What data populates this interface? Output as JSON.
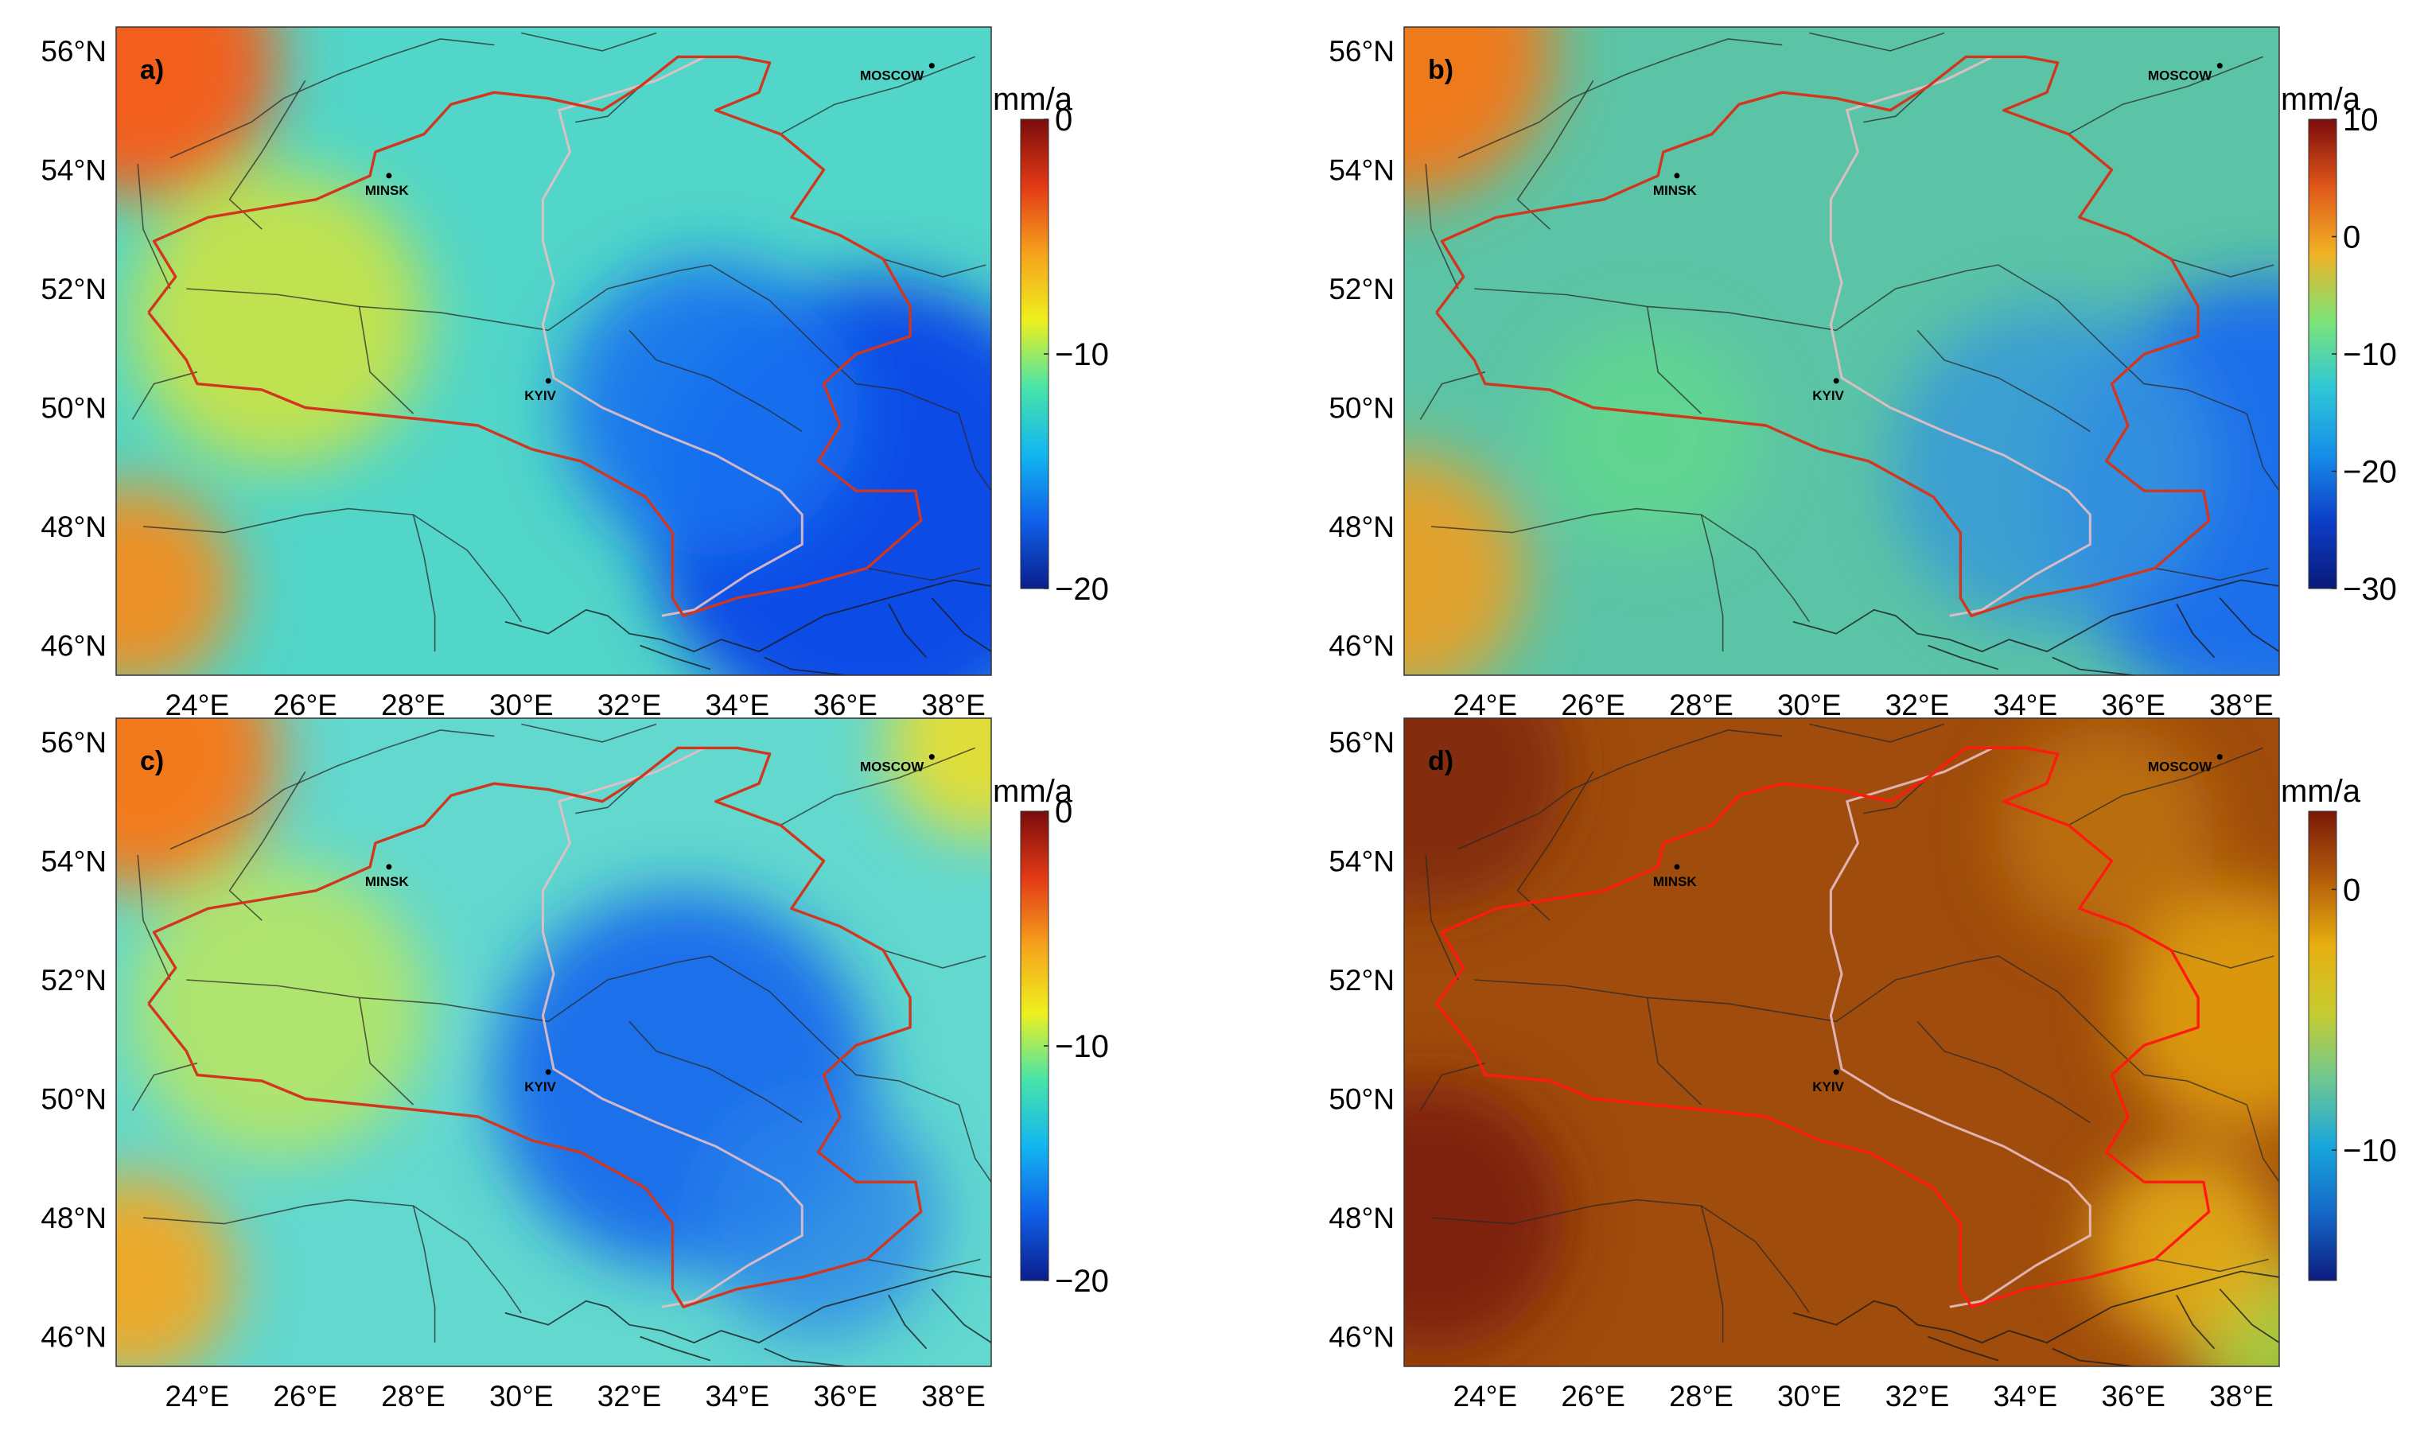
{
  "figure": {
    "panels": [
      {
        "id": "a",
        "label": "a)",
        "colorbar": {
          "unit": "mm/a",
          "ticks": [
            "0",
            "−10",
            "−20"
          ],
          "colors": [
            "#7a0c0c",
            "#e23a16",
            "#f5a21c",
            "#eef01e",
            "#49e4a8",
            "#12b6f0",
            "#1060e8",
            "#0a1e8c"
          ]
        },
        "field": {
          "base": "#52d6c9",
          "blobs": [
            {
              "lon": 36.5,
              "lat": 48.3,
              "r": 8.5,
              "color": "#0f4ce6",
              "o": 1
            },
            {
              "lon": 33.5,
              "lat": 50.0,
              "r": 5.5,
              "color": "#1a72ee",
              "o": 0.9
            },
            {
              "lon": 23.0,
              "lat": 55.8,
              "r": 5.0,
              "color": "#f25f1c",
              "o": 1
            },
            {
              "lon": 22.8,
              "lat": 47.0,
              "r": 3.8,
              "color": "#f28c1e",
              "o": 0.95
            },
            {
              "lon": 25.5,
              "lat": 51.5,
              "r": 5.5,
              "color": "#e6e629",
              "o": 0.75
            }
          ]
        }
      },
      {
        "id": "b",
        "label": "b)",
        "colorbar": {
          "unit": "mm/a",
          "ticks": [
            "10",
            "0",
            "−10",
            "−20",
            "−30"
          ],
          "colors": [
            "#7a0c0c",
            "#e0561a",
            "#f0b224",
            "#7ee478",
            "#2fc8d6",
            "#168ee8",
            "#0c3ec8",
            "#0a1a78"
          ]
        },
        "field": {
          "base": "#5cc4a6",
          "blobs": [
            {
              "lon": 38.5,
              "lat": 48.5,
              "r": 8.0,
              "color": "#1e6eea",
              "o": 1
            },
            {
              "lon": 34.5,
              "lat": 49.0,
              "r": 6.0,
              "color": "#3596dc",
              "o": 0.8
            },
            {
              "lon": 22.5,
              "lat": 56.0,
              "r": 5.5,
              "color": "#ee7a1e",
              "o": 1
            },
            {
              "lon": 22.5,
              "lat": 47.2,
              "r": 4.5,
              "color": "#e8a028",
              "o": 0.95
            },
            {
              "lon": 27.0,
              "lat": 49.5,
              "r": 4.0,
              "color": "#62dd88",
              "o": 0.7
            }
          ]
        }
      },
      {
        "id": "c",
        "label": "c)",
        "colorbar": {
          "unit": "mm/a",
          "ticks": [
            "0",
            "−10",
            "−20"
          ],
          "colors": [
            "#7a0c0c",
            "#e23a16",
            "#f5a21c",
            "#eef01e",
            "#49e4a8",
            "#12b6f0",
            "#1060e8",
            "#0a1e8c"
          ]
        },
        "field": {
          "base": "#62d8cf",
          "blobs": [
            {
              "lon": 33.0,
              "lat": 50.3,
              "r": 7.0,
              "color": "#1c70ea",
              "o": 1
            },
            {
              "lon": 35.5,
              "lat": 48.0,
              "r": 4.5,
              "color": "#2a84ea",
              "o": 0.8
            },
            {
              "lon": 23.0,
              "lat": 55.8,
              "r": 5.0,
              "color": "#f27a1e",
              "o": 1
            },
            {
              "lon": 22.8,
              "lat": 47.0,
              "r": 3.8,
              "color": "#f2a822",
              "o": 0.95
            },
            {
              "lon": 38.5,
              "lat": 56.0,
              "r": 3.5,
              "color": "#eede2a",
              "o": 0.9
            },
            {
              "lon": 25.5,
              "lat": 51.5,
              "r": 5.5,
              "color": "#e2ec2e",
              "o": 0.6
            }
          ]
        }
      },
      {
        "id": "d",
        "label": "d)",
        "colorbar": {
          "unit": "mm/a",
          "ticks": [
            "0",
            "−10"
          ],
          "colors": [
            "#7a1808",
            "#b45c0a",
            "#e7ae10",
            "#c8cc30",
            "#6fc890",
            "#18a6dc",
            "#1468c8",
            "#0c1c7e"
          ]
        },
        "field": {
          "base": "#a04c0c",
          "blobs": [
            {
              "lon": 23.0,
              "lat": 48.0,
              "r": 5.0,
              "color": "#7e200a",
              "o": 1
            },
            {
              "lon": 23.0,
              "lat": 55.5,
              "r": 5.0,
              "color": "#80280a",
              "o": 0.9
            },
            {
              "lon": 38.0,
              "lat": 51.5,
              "r": 4.5,
              "color": "#e0a012",
              "o": 0.9
            },
            {
              "lon": 38.5,
              "lat": 46.0,
              "r": 3.0,
              "color": "#a2c840",
              "o": 1
            },
            {
              "lon": 37.0,
              "lat": 47.5,
              "r": 3.5,
              "color": "#e8b214",
              "o": 0.85
            },
            {
              "lon": 35.5,
              "lat": 54.5,
              "r": 4.0,
              "color": "#c0760e",
              "o": 0.8
            }
          ]
        }
      }
    ],
    "x_ticks": [
      "24°E",
      "26°E",
      "28°E",
      "30°E",
      "32°E",
      "34°E",
      "36°E",
      "38°E"
    ],
    "y_ticks": [
      "56°N",
      "54°N",
      "52°N",
      "50°N",
      "48°N",
      "46°N"
    ],
    "cities": [
      {
        "name": "MOSCOW",
        "lon": 37.6,
        "lat": 55.75
      },
      {
        "name": "MINSK",
        "lon": 27.55,
        "lat": 53.9
      },
      {
        "name": "KYIV",
        "lon": 30.5,
        "lat": 50.45
      }
    ]
  }
}
